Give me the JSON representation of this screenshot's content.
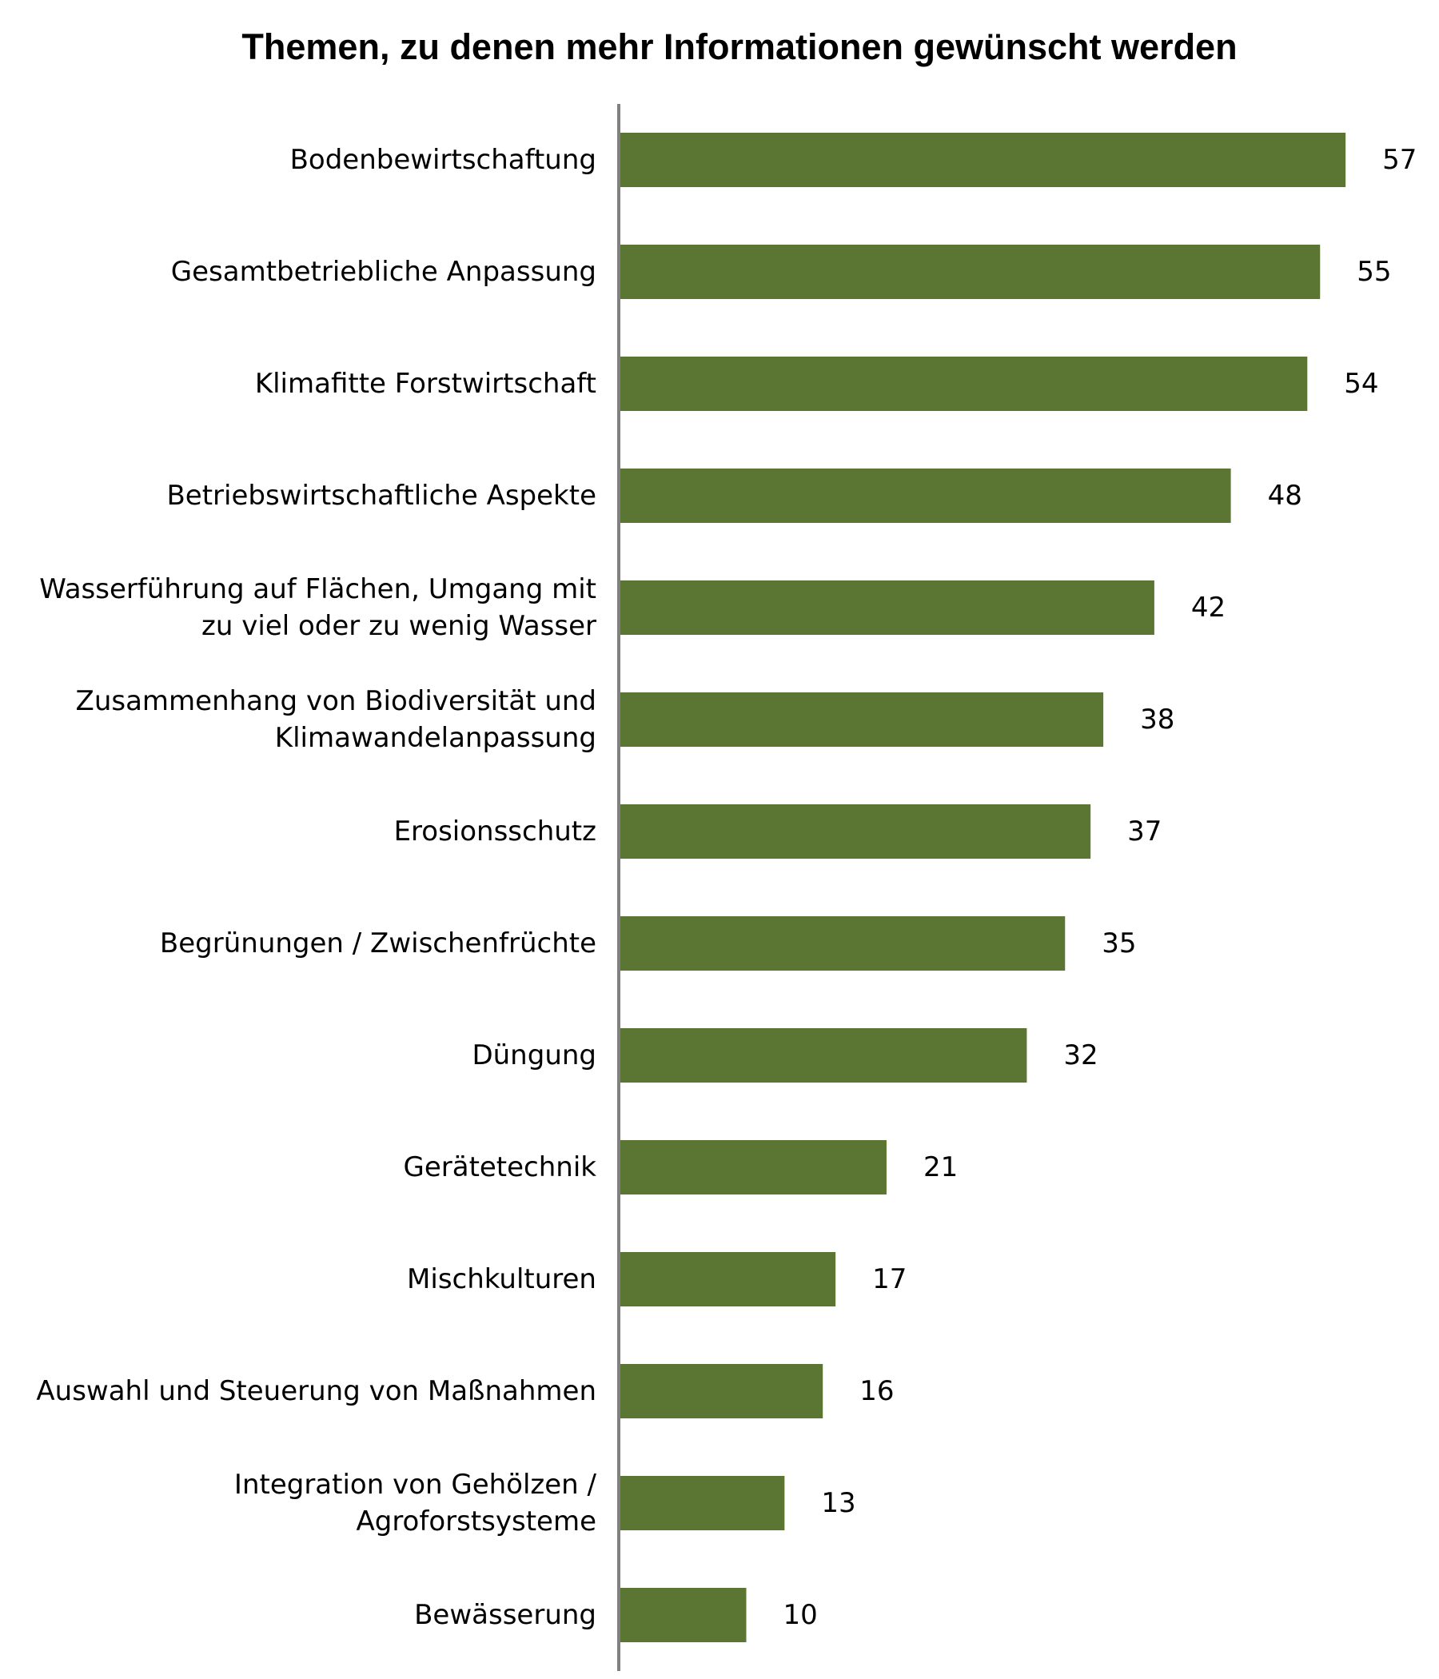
{
  "chart_data": {
    "type": "bar",
    "orientation": "horizontal",
    "title": "Themen, zu denen mehr Informationen gewünscht werden",
    "xlabel": "",
    "ylabel": "",
    "xlim": [
      0,
      60
    ],
    "grid": false,
    "legend": "none",
    "bar_color": "#5b7532",
    "axis_color": "#808080",
    "categories": [
      [
        "Bodenbewirtschaftung"
      ],
      [
        "Gesamtbetriebliche Anpassung"
      ],
      [
        "Klimafitte Forstwirtschaft"
      ],
      [
        "Betriebswirtschaftliche Aspekte"
      ],
      [
        "Wasserführung auf Flächen, Umgang mit",
        "zu viel oder zu wenig Wasser"
      ],
      [
        "Zusammenhang von Biodiversität und",
        "Klimawandelanpassung"
      ],
      [
        "Erosionsschutz"
      ],
      [
        "Begrünungen / Zwischenfrüchte"
      ],
      [
        "Düngung"
      ],
      [
        "Gerätetechnik"
      ],
      [
        "Mischkulturen"
      ],
      [
        "Auswahl und Steuerung von Maßnahmen"
      ],
      [
        "Integration von Gehölzen /",
        "Agroforstsysteme"
      ],
      [
        "Bewässerung"
      ]
    ],
    "values": [
      57,
      55,
      54,
      48,
      42,
      38,
      37,
      35,
      32,
      21,
      17,
      16,
      13,
      10
    ]
  }
}
